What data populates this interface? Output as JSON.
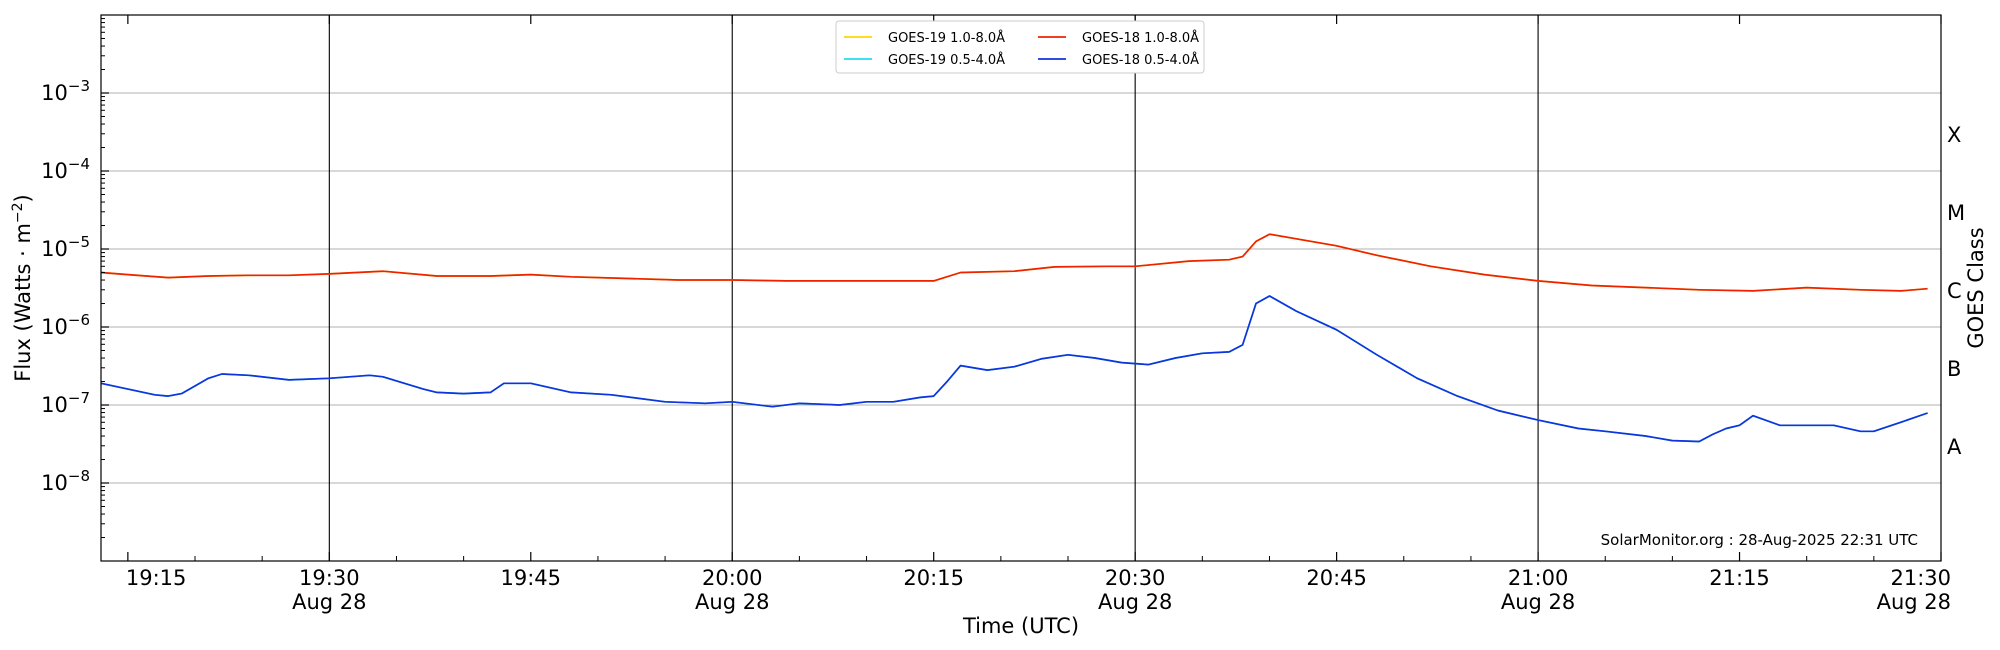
{
  "chart_data": {
    "type": "line",
    "xlabel": "Time (UTC)",
    "ylabel_main": "Flux (Watts · m",
    "ylabel_sup": "−2",
    "ylabel_close": ")",
    "y2label": "GOES Class",
    "credit": "SolarMonitor.org : 28-Aug-2025 22:31 UTC",
    "x_range": [
      "19:13",
      "21:30"
    ],
    "ylim": [
      1e-09,
      0.01
    ],
    "y_scale": "log",
    "grid": "horizontal",
    "legend_position": "top-center",
    "x_major_ticks": [
      {
        "time": "19:15",
        "label": "19:15",
        "date": ""
      },
      {
        "time": "19:30",
        "label": "19:30",
        "date": "Aug 28"
      },
      {
        "time": "19:45",
        "label": "19:45",
        "date": ""
      },
      {
        "time": "20:00",
        "label": "20:00",
        "date": "Aug 28"
      },
      {
        "time": "20:15",
        "label": "20:15",
        "date": ""
      },
      {
        "time": "20:30",
        "label": "20:30",
        "date": "Aug 28"
      },
      {
        "time": "20:45",
        "label": "20:45",
        "date": ""
      },
      {
        "time": "21:00",
        "label": "21:00",
        "date": "Aug 28"
      },
      {
        "time": "21:15",
        "label": "21:15",
        "date": ""
      },
      {
        "time": "21:30",
        "label": "21:30",
        "date": "Aug 28"
      }
    ],
    "y_ticks": [
      {
        "value": 1e-08,
        "base": "10",
        "exp": "−8"
      },
      {
        "value": 1e-07,
        "base": "10",
        "exp": "−7"
      },
      {
        "value": 1e-06,
        "base": "10",
        "exp": "−6"
      },
      {
        "value": 1e-05,
        "base": "10",
        "exp": "−5"
      },
      {
        "value": 0.0001,
        "base": "10",
        "exp": "−4"
      },
      {
        "value": 0.001,
        "base": "10",
        "exp": "−3"
      }
    ],
    "goes_classes": [
      {
        "label": "A",
        "value": 3e-08
      },
      {
        "label": "B",
        "value": 3e-07
      },
      {
        "label": "C",
        "value": 3e-06
      },
      {
        "label": "M",
        "value": 3e-05
      },
      {
        "label": "X",
        "value": 0.0003
      }
    ],
    "vertical_lines": [
      "19:30",
      "20:00",
      "20:30",
      "21:00"
    ],
    "series": [
      {
        "name": "GOES-19 1.0-8.0Å",
        "color": "#ffd700",
        "x": [
          "19:13",
          "19:15",
          "19:18",
          "19:21",
          "19:24",
          "19:27",
          "19:30",
          "19:34",
          "19:38",
          "19:42",
          "19:45",
          "19:48",
          "19:52",
          "19:56",
          "20:00",
          "20:04",
          "20:08",
          "20:12",
          "20:15",
          "20:17",
          "20:21",
          "20:24",
          "20:28",
          "20:30",
          "20:34",
          "20:37",
          "20:38",
          "20:39",
          "20:40",
          "20:42",
          "20:45",
          "20:48",
          "20:52",
          "20:56",
          "21:00",
          "21:04",
          "21:08",
          "21:12",
          "21:16",
          "21:20",
          "21:24",
          "21:27",
          "21:29"
        ],
        "values": [
          5e-06,
          4.7e-06,
          4.3e-06,
          4.5e-06,
          4.6e-06,
          4.6e-06,
          4.8e-06,
          5.2e-06,
          4.5e-06,
          4.5e-06,
          4.7e-06,
          4.4e-06,
          4.2e-06,
          4e-06,
          4e-06,
          3.9e-06,
          3.9e-06,
          3.9e-06,
          3.9e-06,
          5e-06,
          5.2e-06,
          5.9e-06,
          6e-06,
          6e-06,
          7e-06,
          7.3e-06,
          8e-06,
          1.25e-05,
          1.55e-05,
          1.35e-05,
          1.1e-05,
          8.3e-06,
          6e-06,
          4.7e-06,
          3.9e-06,
          3.4e-06,
          3.2e-06,
          3e-06,
          2.9e-06,
          3.2e-06,
          3e-06,
          2.9e-06,
          3.1e-06
        ]
      },
      {
        "name": "GOES-18 1.0-8.0Å",
        "color": "#ee2200",
        "x": [
          "19:13",
          "19:15",
          "19:18",
          "19:21",
          "19:24",
          "19:27",
          "19:30",
          "19:34",
          "19:38",
          "19:42",
          "19:45",
          "19:48",
          "19:52",
          "19:56",
          "20:00",
          "20:04",
          "20:08",
          "20:12",
          "20:15",
          "20:17",
          "20:21",
          "20:24",
          "20:28",
          "20:30",
          "20:34",
          "20:37",
          "20:38",
          "20:39",
          "20:40",
          "20:42",
          "20:45",
          "20:48",
          "20:52",
          "20:56",
          "21:00",
          "21:04",
          "21:08",
          "21:12",
          "21:16",
          "21:20",
          "21:24",
          "21:27",
          "21:29"
        ],
        "values": [
          5e-06,
          4.7e-06,
          4.3e-06,
          4.5e-06,
          4.6e-06,
          4.6e-06,
          4.8e-06,
          5.2e-06,
          4.5e-06,
          4.5e-06,
          4.7e-06,
          4.4e-06,
          4.2e-06,
          4e-06,
          4e-06,
          3.9e-06,
          3.9e-06,
          3.9e-06,
          3.9e-06,
          5e-06,
          5.2e-06,
          5.9e-06,
          6e-06,
          6e-06,
          7e-06,
          7.3e-06,
          8e-06,
          1.25e-05,
          1.55e-05,
          1.35e-05,
          1.1e-05,
          8.3e-06,
          6e-06,
          4.7e-06,
          3.9e-06,
          3.4e-06,
          3.2e-06,
          3e-06,
          2.9e-06,
          3.2e-06,
          3e-06,
          2.9e-06,
          3.1e-06
        ]
      },
      {
        "name": "GOES-19 0.5-4.0Å",
        "color": "#22ddee",
        "x": [
          "19:13",
          "19:15",
          "19:17",
          "19:18",
          "19:19",
          "19:21",
          "19:22",
          "19:24",
          "19:27",
          "19:30",
          "19:33",
          "19:34",
          "19:37",
          "19:38",
          "19:40",
          "19:42",
          "19:43",
          "19:45",
          "19:48",
          "19:51",
          "19:55",
          "19:58",
          "20:00",
          "20:03",
          "20:05",
          "20:08",
          "20:10",
          "20:12",
          "20:14",
          "20:15",
          "20:16",
          "20:17",
          "20:19",
          "20:21",
          "20:23",
          "20:25",
          "20:27",
          "20:29",
          "20:31",
          "20:33",
          "20:35",
          "20:37",
          "20:38",
          "20:39",
          "20:40",
          "20:42",
          "20:45",
          "20:48",
          "20:51",
          "20:54",
          "20:57",
          "21:00",
          "21:03",
          "21:05",
          "21:08",
          "21:10",
          "21:12",
          "21:13",
          "21:14",
          "21:15",
          "21:16",
          "21:18",
          "21:20",
          "21:22",
          "21:24",
          "21:25",
          "21:27",
          "21:29"
        ],
        "values": [
          1.9e-07,
          1.6e-07,
          1.35e-07,
          1.3e-07,
          1.4e-07,
          2.2e-07,
          2.5e-07,
          2.4e-07,
          2.1e-07,
          2.2e-07,
          2.4e-07,
          2.3e-07,
          1.6e-07,
          1.45e-07,
          1.4e-07,
          1.45e-07,
          1.9e-07,
          1.9e-07,
          1.45e-07,
          1.35e-07,
          1.1e-07,
          1.05e-07,
          1.1e-07,
          9.5e-08,
          1.05e-07,
          1e-07,
          1.1e-07,
          1.1e-07,
          1.25e-07,
          1.3e-07,
          2e-07,
          3.2e-07,
          2.8e-07,
          3.1e-07,
          3.9e-07,
          4.4e-07,
          4e-07,
          3.5e-07,
          3.3e-07,
          4e-07,
          4.6e-07,
          4.8e-07,
          5.9e-07,
          2e-06,
          2.5e-06,
          1.6e-06,
          9.2e-07,
          4.4e-07,
          2.2e-07,
          1.3e-07,
          8.5e-08,
          6.4e-08,
          5e-08,
          4.6e-08,
          4e-08,
          3.5e-08,
          3.4e-08,
          4.2e-08,
          5e-08,
          5.5e-08,
          7.3e-08,
          5.5e-08,
          5.5e-08,
          5.5e-08,
          4.6e-08,
          4.6e-08,
          6e-08,
          7.9e-08
        ]
      },
      {
        "name": "GOES-18 0.5-4.0Å",
        "color": "#1133dd",
        "x": [
          "19:13",
          "19:15",
          "19:17",
          "19:18",
          "19:19",
          "19:21",
          "19:22",
          "19:24",
          "19:27",
          "19:30",
          "19:33",
          "19:34",
          "19:37",
          "19:38",
          "19:40",
          "19:42",
          "19:43",
          "19:45",
          "19:48",
          "19:51",
          "19:55",
          "19:58",
          "20:00",
          "20:03",
          "20:05",
          "20:08",
          "20:10",
          "20:12",
          "20:14",
          "20:15",
          "20:16",
          "20:17",
          "20:19",
          "20:21",
          "20:23",
          "20:25",
          "20:27",
          "20:29",
          "20:31",
          "20:33",
          "20:35",
          "20:37",
          "20:38",
          "20:39",
          "20:40",
          "20:42",
          "20:45",
          "20:48",
          "20:51",
          "20:54",
          "20:57",
          "21:00",
          "21:03",
          "21:05",
          "21:08",
          "21:10",
          "21:12",
          "21:13",
          "21:14",
          "21:15",
          "21:16",
          "21:18",
          "21:20",
          "21:22",
          "21:24",
          "21:25",
          "21:27",
          "21:29"
        ],
        "values": [
          1.9e-07,
          1.6e-07,
          1.35e-07,
          1.3e-07,
          1.4e-07,
          2.2e-07,
          2.5e-07,
          2.4e-07,
          2.1e-07,
          2.2e-07,
          2.4e-07,
          2.3e-07,
          1.6e-07,
          1.45e-07,
          1.4e-07,
          1.45e-07,
          1.9e-07,
          1.9e-07,
          1.45e-07,
          1.35e-07,
          1.1e-07,
          1.05e-07,
          1.1e-07,
          9.5e-08,
          1.05e-07,
          1e-07,
          1.1e-07,
          1.1e-07,
          1.25e-07,
          1.3e-07,
          2e-07,
          3.2e-07,
          2.8e-07,
          3.1e-07,
          3.9e-07,
          4.4e-07,
          4e-07,
          3.5e-07,
          3.3e-07,
          4e-07,
          4.6e-07,
          4.8e-07,
          5.9e-07,
          2e-06,
          2.5e-06,
          1.6e-06,
          9.2e-07,
          4.4e-07,
          2.2e-07,
          1.3e-07,
          8.5e-08,
          6.4e-08,
          5e-08,
          4.6e-08,
          4e-08,
          3.5e-08,
          3.4e-08,
          4.2e-08,
          5e-08,
          5.5e-08,
          7.3e-08,
          5.5e-08,
          5.5e-08,
          5.5e-08,
          4.6e-08,
          4.6e-08,
          6e-08,
          7.9e-08
        ]
      }
    ]
  }
}
